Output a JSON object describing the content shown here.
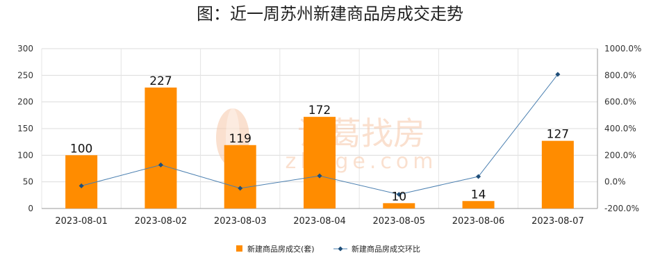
{
  "chart_data": {
    "type": "bar",
    "title": "图：近一周苏州新建商品房成交走势",
    "categories": [
      "2023-08-01",
      "2023-08-02",
      "2023-08-03",
      "2023-08-04",
      "2023-08-05",
      "2023-08-06",
      "2023-08-07"
    ],
    "series": [
      {
        "name": "新建商品房成交(套)",
        "type": "bar",
        "axis": "left",
        "color": "#ff8c00",
        "values": [
          100,
          227,
          119,
          172,
          10,
          14,
          127
        ]
      },
      {
        "name": "新建商品房成交环比",
        "type": "line",
        "axis": "right",
        "color": "#4a7fb0",
        "values": [
          -30,
          127,
          -48,
          45,
          -94,
          40,
          807
        ]
      }
    ],
    "ylim_left": [
      0,
      300
    ],
    "yticks_left": [
      "0",
      "50",
      "100",
      "150",
      "200",
      "250",
      "300"
    ],
    "ylim_right": [
      -200,
      1000
    ],
    "yticks_right": [
      "-200.0%",
      "0.0%",
      "200.0%",
      "400.0%",
      "600.0%",
      "800.0%",
      "1000.0%"
    ],
    "grid": true,
    "legend_position": "bottom"
  },
  "watermark": {
    "text_cn": "诸葛找房",
    "text_en": "zhuge.com"
  }
}
